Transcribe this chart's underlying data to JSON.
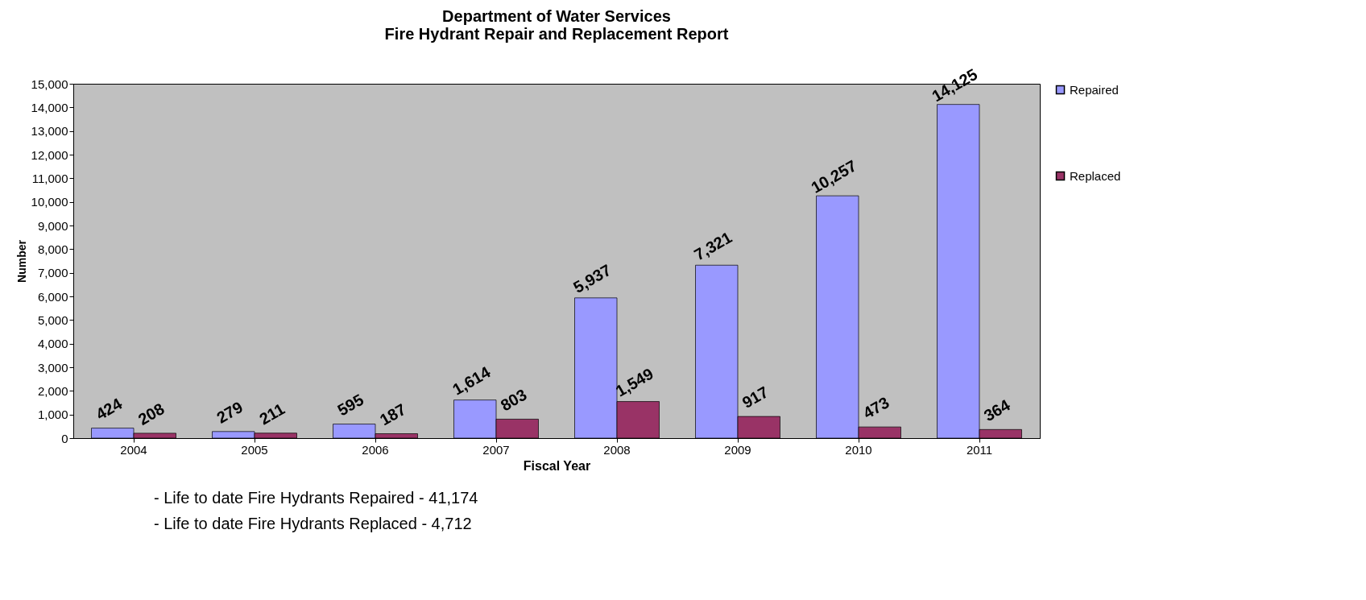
{
  "chart_data": {
    "type": "bar",
    "title": [
      "Department of Water Services",
      "Fire Hydrant Repair and Replacement Report"
    ],
    "xlabel": "Fiscal Year",
    "ylabel": "Number",
    "categories": [
      "2004",
      "2005",
      "2006",
      "2007",
      "2008",
      "2009",
      "2010",
      "2011"
    ],
    "series": [
      {
        "name": "Repaired",
        "color": "#9999ff",
        "values": [
          424,
          279,
          595,
          1614,
          5937,
          7321,
          10257,
          14125
        ],
        "value_labels": [
          "424",
          "279",
          "595",
          "1,614",
          "5,937",
          "7,321",
          "10,257",
          "14,125"
        ]
      },
      {
        "name": "Replaced",
        "color": "#993366",
        "values": [
          208,
          211,
          187,
          803,
          1549,
          917,
          473,
          364
        ],
        "value_labels": [
          "208",
          "211",
          "187",
          "803",
          "1,549",
          "917",
          "473",
          "364"
        ]
      }
    ],
    "ylim": [
      0,
      15000
    ],
    "yticks": [
      0,
      {
        "value": 1000,
        "label": "1,000"
      },
      {
        "value": 2000,
        "label": "2,000"
      },
      {
        "value": 3000,
        "label": "3,000"
      },
      {
        "value": 4000,
        "label": "4,000"
      },
      {
        "value": 5000,
        "label": "5,000"
      },
      {
        "value": 6000,
        "label": "6,000"
      },
      {
        "value": 7000,
        "label": "7,000"
      },
      {
        "value": 8000,
        "label": "8,000"
      },
      {
        "value": 9000,
        "label": "9,000"
      },
      {
        "value": 10000,
        "label": "10,000"
      },
      {
        "value": 11000,
        "label": "11,000"
      },
      {
        "value": 12000,
        "label": "12,000"
      },
      {
        "value": 13000,
        "label": "13,000"
      },
      {
        "value": 14000,
        "label": "14,000"
      },
      {
        "value": 15000,
        "label": "15,000"
      }
    ],
    "grid": false,
    "legend": "right",
    "annotations": [
      "- Life to date Fire Hydrants Repaired -  41,174",
      "- Life to date Fire Hydrants Replaced -    4,712"
    ]
  }
}
